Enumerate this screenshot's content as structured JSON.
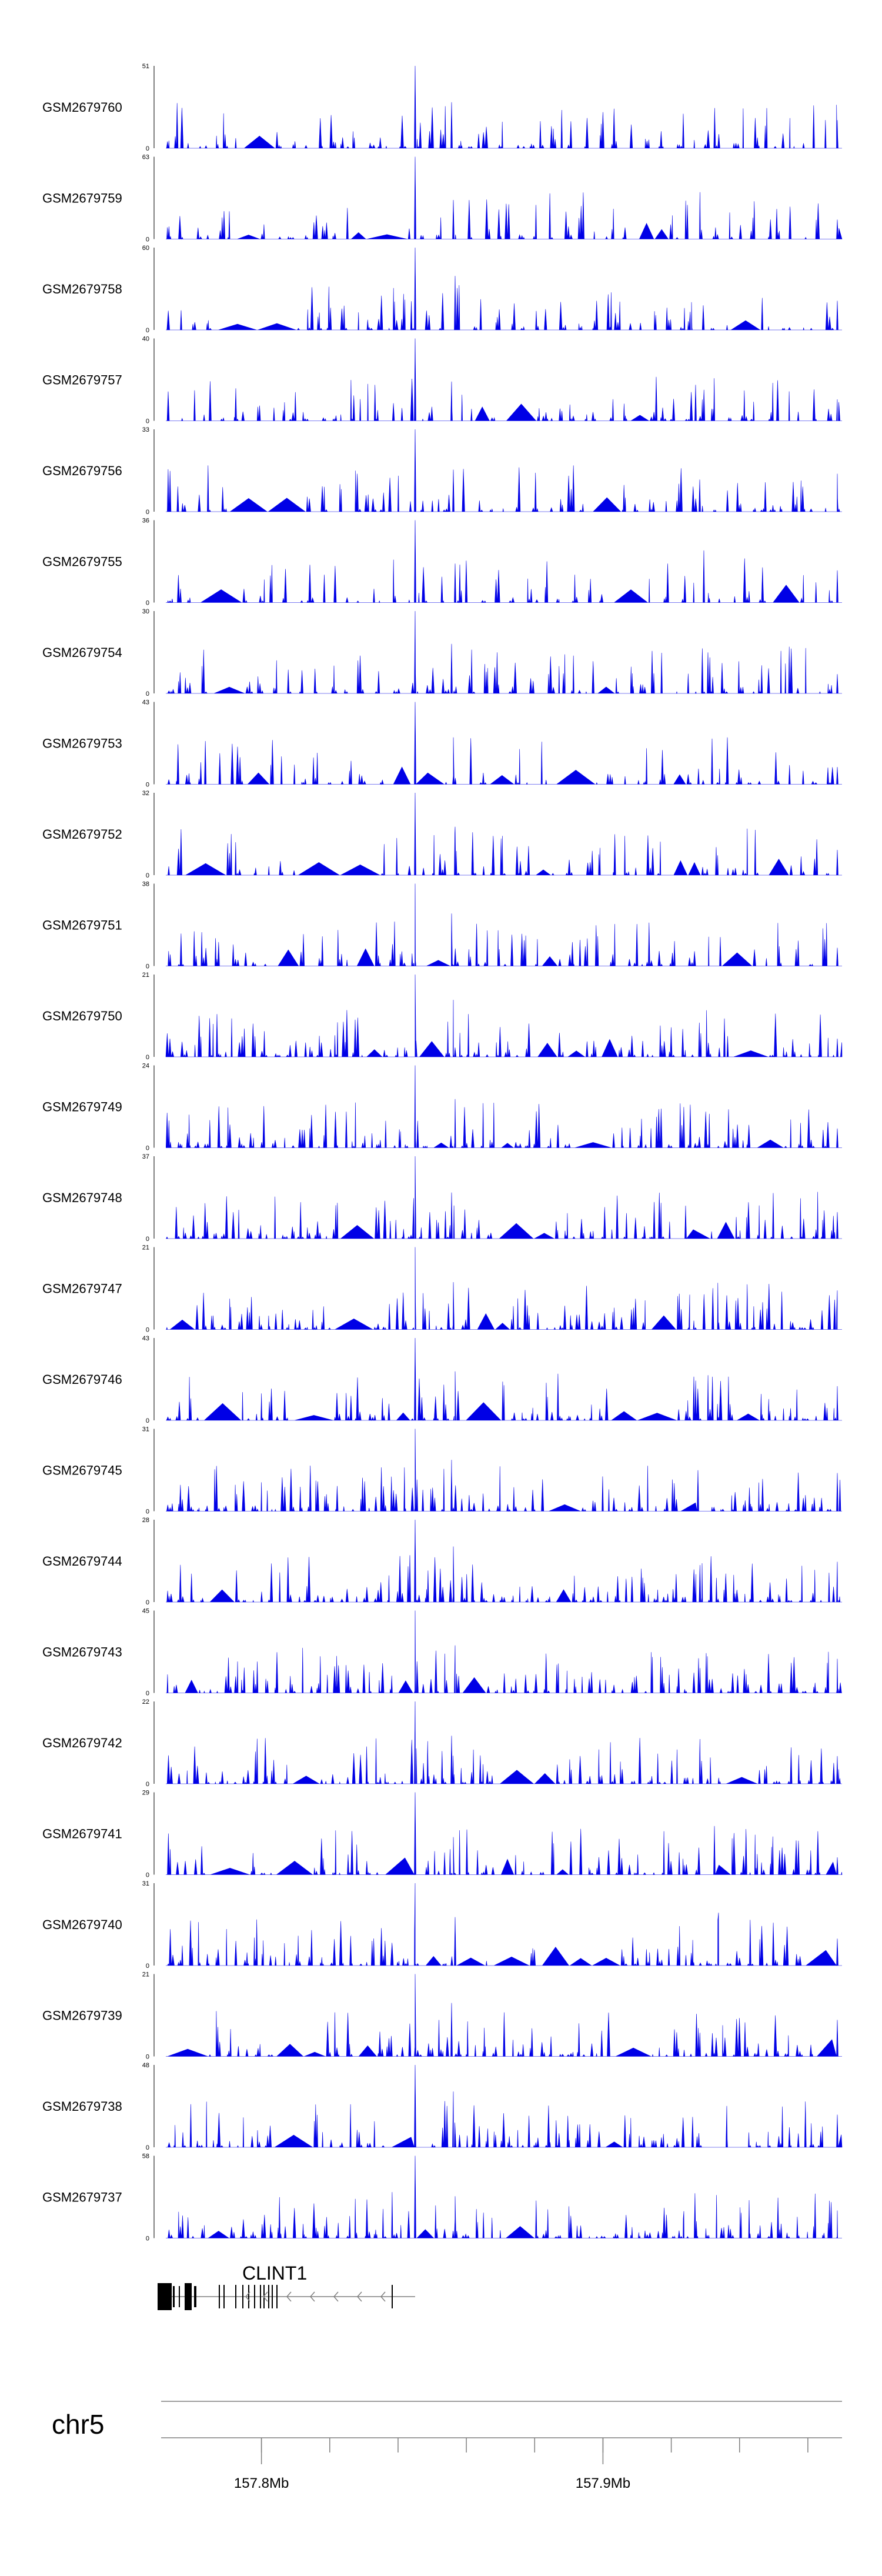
{
  "colors": {
    "signal": "#0000E6",
    "axis": "#000000",
    "guide": "#7f7f7f"
  },
  "chart_data": {
    "type": "area",
    "tracks": [
      {
        "name": "GSM2679760",
        "ymax": 51
      },
      {
        "name": "GSM2679759",
        "ymax": 63
      },
      {
        "name": "GSM2679758",
        "ymax": 60
      },
      {
        "name": "GSM2679757",
        "ymax": 40
      },
      {
        "name": "GSM2679756",
        "ymax": 33
      },
      {
        "name": "GSM2679755",
        "ymax": 36
      },
      {
        "name": "GSM2679754",
        "ymax": 30
      },
      {
        "name": "GSM2679753",
        "ymax": 43
      },
      {
        "name": "GSM2679752",
        "ymax": 32
      },
      {
        "name": "GSM2679751",
        "ymax": 38
      },
      {
        "name": "GSM2679750",
        "ymax": 21
      },
      {
        "name": "GSM2679749",
        "ymax": 24
      },
      {
        "name": "GSM2679748",
        "ymax": 37
      },
      {
        "name": "GSM2679747",
        "ymax": 21
      },
      {
        "name": "GSM2679746",
        "ymax": 43
      },
      {
        "name": "GSM2679745",
        "ymax": 31
      },
      {
        "name": "GSM2679744",
        "ymax": 28
      },
      {
        "name": "GSM2679743",
        "ymax": 45
      },
      {
        "name": "GSM2679742",
        "ymax": 22
      },
      {
        "name": "GSM2679741",
        "ymax": 29
      },
      {
        "name": "GSM2679740",
        "ymax": 31
      },
      {
        "name": "GSM2679739",
        "ymax": 21
      },
      {
        "name": "GSM2679738",
        "ymax": 48
      },
      {
        "name": "GSM2679737",
        "ymax": 58
      }
    ],
    "ymin_label": "0",
    "gene": {
      "name": "CLINT1",
      "strand": "-"
    },
    "chromosome": "chr5",
    "xlim": [
      157.786,
      157.885
    ],
    "x_ticks": [
      157.8,
      157.81,
      157.82,
      157.83,
      157.84,
      157.85,
      157.86,
      157.87,
      157.88
    ],
    "x_tick_labels": [
      {
        "value": 157.8,
        "label": "157.8Mb"
      },
      {
        "value": 157.85,
        "label": "157.9Mb"
      }
    ],
    "main_peak": 157.8225
  }
}
